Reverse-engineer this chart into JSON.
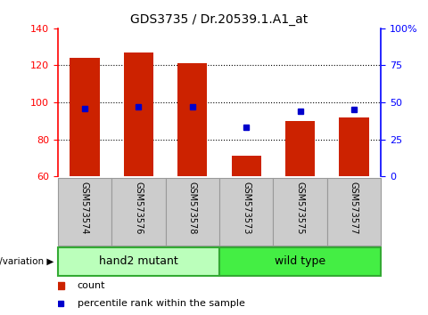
{
  "title": "GDS3735 / Dr.20539.1.A1_at",
  "samples": [
    "GSM573574",
    "GSM573576",
    "GSM573578",
    "GSM573573",
    "GSM573575",
    "GSM573577"
  ],
  "counts": [
    124,
    127,
    121,
    71,
    90,
    92
  ],
  "percentile_ranks": [
    46,
    47,
    47,
    33,
    44,
    45
  ],
  "groups": [
    {
      "label": "hand2 mutant",
      "n": 3,
      "color": "#bbffbb",
      "edge_color": "#33aa33"
    },
    {
      "label": "wild type",
      "n": 3,
      "color": "#44ee44",
      "edge_color": "#33aa33"
    }
  ],
  "ylim_left": [
    60,
    140
  ],
  "ylim_right": [
    0,
    100
  ],
  "yticks_left": [
    60,
    80,
    100,
    120,
    140
  ],
  "yticks_right": [
    0,
    25,
    50,
    75,
    100
  ],
  "ytick_labels_right": [
    "0",
    "25",
    "50",
    "75",
    "100%"
  ],
  "grid_values": [
    80,
    100,
    120
  ],
  "bar_color": "#cc2200",
  "marker_color": "#0000cc",
  "bar_width": 0.55,
  "bar_bottom": 60,
  "background_color": "#ffffff",
  "tick_area_bg": "#cccccc",
  "group_label": "genotype/variation"
}
